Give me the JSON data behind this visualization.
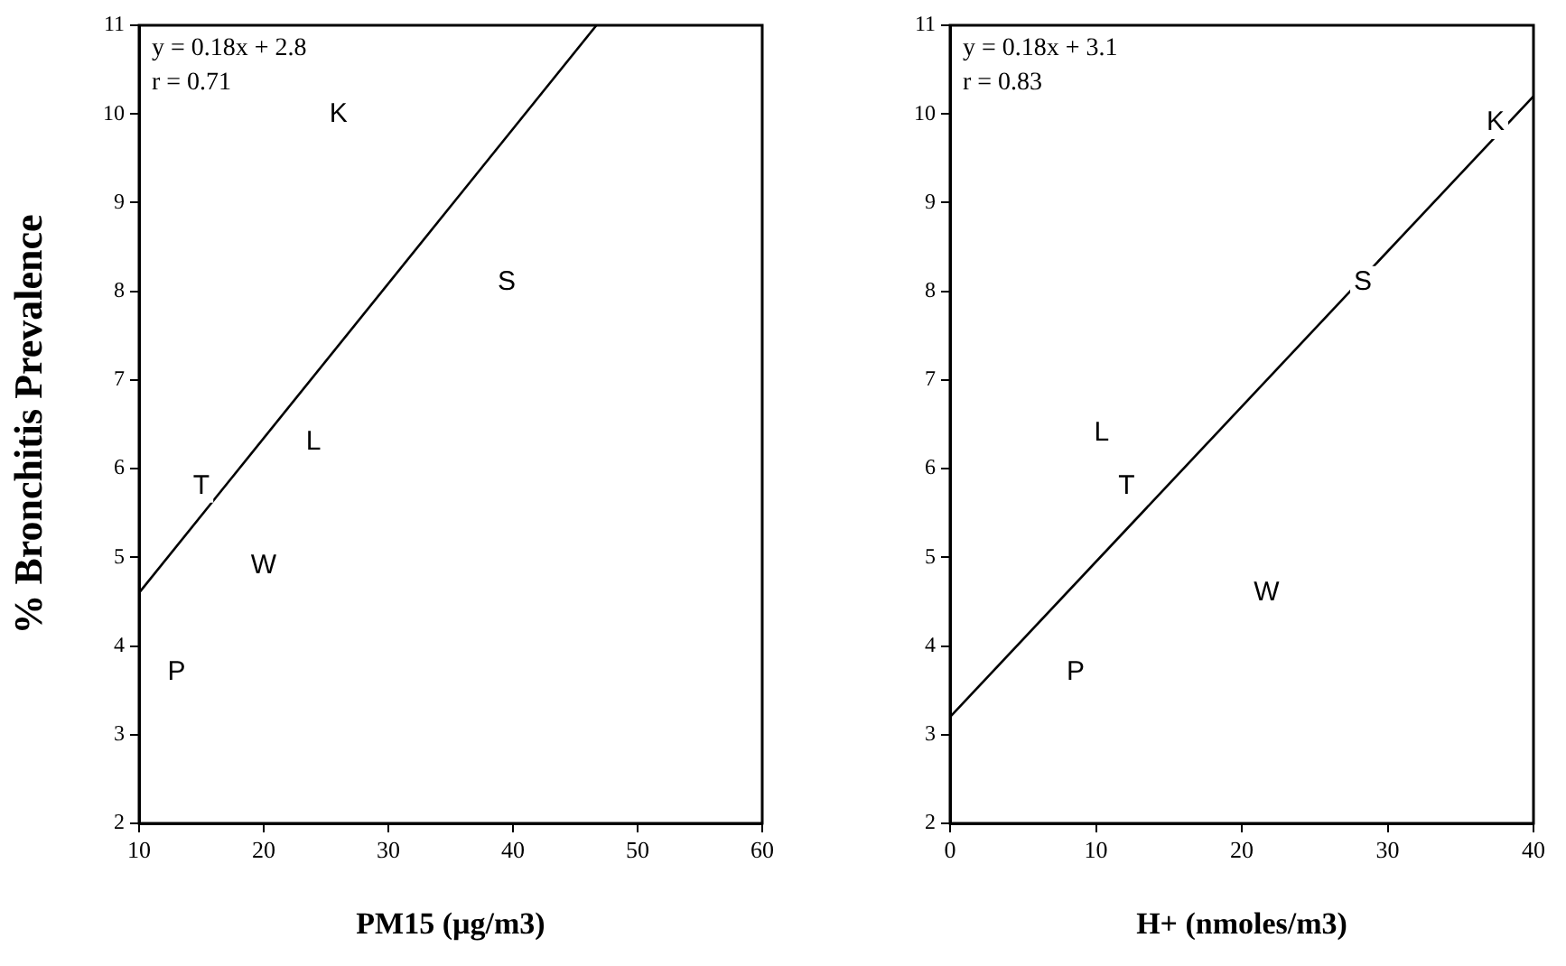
{
  "chart_data": [
    {
      "type": "scatter",
      "xlabel": "PM15 (µg/m3)",
      "ylabel": "% Bronchitis Prevalence",
      "xlim": [
        10,
        60
      ],
      "ylim": [
        2,
        11
      ],
      "xticks": [
        10,
        20,
        30,
        40,
        50,
        60
      ],
      "yticks": [
        2,
        3,
        4,
        5,
        6,
        7,
        8,
        9,
        10,
        11
      ],
      "grid": false,
      "annotations": [
        "y = 0.18x + 2.8",
        "r = 0.71"
      ],
      "series": [
        {
          "type": "scatter",
          "color": "#000000",
          "x": [
            26,
            39.5,
            24,
            15,
            20,
            13
          ],
          "values": [
            10.0,
            8.1,
            6.3,
            5.8,
            4.9,
            3.7
          ],
          "value_labels": [
            "K",
            "S",
            "L",
            "T",
            "W",
            "P"
          ]
        },
        {
          "type": "line",
          "color": "#000000",
          "x": [
            10,
            46.7
          ],
          "values": [
            4.6,
            11
          ]
        }
      ]
    },
    {
      "type": "scatter",
      "xlabel": "H+ (nmoles/m3)",
      "xlim": [
        0,
        40
      ],
      "ylim": [
        2,
        11
      ],
      "xticks": [
        0,
        10,
        20,
        30,
        40
      ],
      "yticks": [
        2,
        3,
        4,
        5,
        6,
        7,
        8,
        9,
        10,
        11
      ],
      "grid": false,
      "annotations": [
        "y = 0.18x + 3.1",
        "r = 0.83"
      ],
      "series": [
        {
          "type": "scatter",
          "color": "#000000",
          "x": [
            37.4,
            28.3,
            10.4,
            12.1,
            21.7,
            8.6
          ],
          "values": [
            9.9,
            8.1,
            6.4,
            5.8,
            4.6,
            3.7
          ],
          "value_labels": [
            "K",
            "S",
            "L",
            "T",
            "W",
            "P"
          ]
        },
        {
          "type": "line",
          "color": "#000000",
          "x": [
            0,
            40
          ],
          "values": [
            3.2,
            10.2
          ]
        }
      ]
    }
  ]
}
